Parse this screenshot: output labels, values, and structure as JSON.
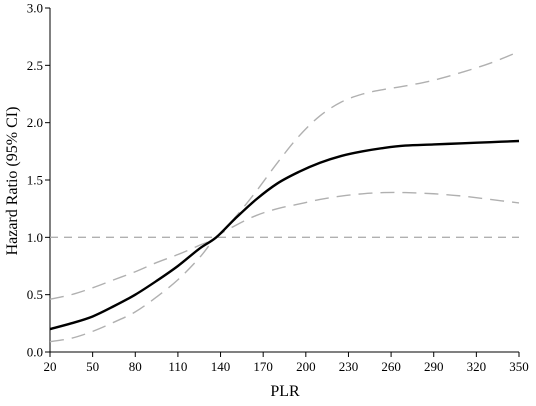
{
  "chart_data": {
    "type": "line",
    "title": "",
    "xlabel": "PLR",
    "ylabel": "Hazard Ratio (95% CI)",
    "xlim": [
      20,
      350
    ],
    "ylim": [
      0,
      3
    ],
    "x_ticks": [
      20,
      50,
      80,
      110,
      140,
      170,
      200,
      230,
      260,
      290,
      320,
      350
    ],
    "x_tick_labels": [
      "20",
      "50",
      "80",
      "110",
      "140",
      "170",
      "200",
      "230",
      "260",
      "290",
      "320",
      "350"
    ],
    "y_ticks": [
      0,
      0.5,
      1,
      1.5,
      2,
      2.5,
      3
    ],
    "y_tick_labels": [
      "0.0",
      "0.5",
      "1.0",
      "1.5",
      "2.0",
      "2.5",
      "3.0"
    ],
    "grid": false,
    "legend": "none",
    "reference_line": {
      "y": 1.0,
      "style": "dashed",
      "color": "#b0b0b0"
    },
    "series": [
      {
        "role": "estimate",
        "color": "#000000",
        "style": "solid",
        "x": [
          20,
          35,
          50,
          65,
          80,
          95,
          110,
          125,
          137,
          150,
          165,
          180,
          195,
          210,
          225,
          240,
          255,
          270,
          290,
          310,
          330,
          350
        ],
        "y": [
          0.2,
          0.25,
          0.31,
          0.4,
          0.5,
          0.62,
          0.75,
          0.9,
          1.0,
          1.16,
          1.33,
          1.47,
          1.57,
          1.65,
          1.71,
          1.75,
          1.78,
          1.8,
          1.81,
          1.82,
          1.83,
          1.84
        ]
      },
      {
        "role": "upper-ci",
        "color": "#b0b0b0",
        "style": "dashed",
        "x": [
          20,
          35,
          50,
          65,
          80,
          95,
          110,
          125,
          137,
          150,
          165,
          180,
          195,
          210,
          225,
          240,
          255,
          270,
          290,
          310,
          330,
          350
        ],
        "y": [
          0.46,
          0.5,
          0.56,
          0.63,
          0.7,
          0.78,
          0.85,
          0.93,
          1.0,
          1.17,
          1.4,
          1.65,
          1.88,
          2.06,
          2.18,
          2.25,
          2.29,
          2.32,
          2.37,
          2.44,
          2.52,
          2.62
        ]
      },
      {
        "role": "lower-ci",
        "color": "#b0b0b0",
        "style": "dashed",
        "x": [
          20,
          35,
          50,
          65,
          80,
          95,
          110,
          125,
          137,
          150,
          165,
          180,
          195,
          210,
          225,
          240,
          255,
          270,
          290,
          310,
          330,
          350
        ],
        "y": [
          0.09,
          0.12,
          0.18,
          0.26,
          0.35,
          0.48,
          0.63,
          0.82,
          1.0,
          1.1,
          1.19,
          1.25,
          1.29,
          1.33,
          1.36,
          1.38,
          1.39,
          1.39,
          1.38,
          1.36,
          1.33,
          1.3
        ]
      }
    ]
  }
}
